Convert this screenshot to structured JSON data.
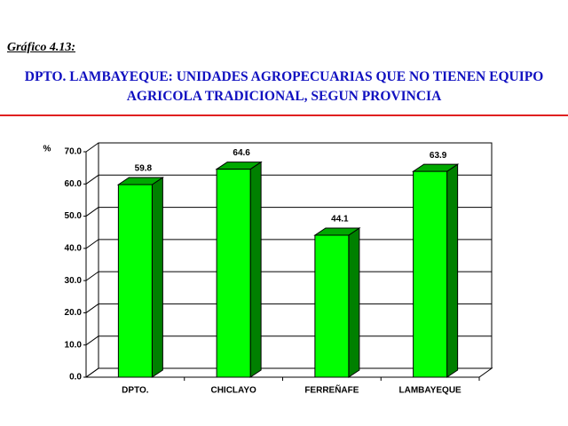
{
  "chart_data": {
    "type": "bar3d",
    "figure_label": "Gráfico  4.13:",
    "title": "DPTO. LAMBAYEQUE: UNIDADES AGROPECUARIAS QUE NO TIENEN EQUIPO AGRICOLA TRADICIONAL, SEGUN PROVINCIA",
    "y_axis_label": "%",
    "categories": [
      "DPTO.",
      "CHICLAYO",
      "FERREÑAFE",
      "LAMBAYEQUE"
    ],
    "values": [
      59.8,
      64.6,
      44.1,
      63.9
    ],
    "color": "#00ff00",
    "ylim": [
      0,
      70
    ],
    "yticks": [
      {
        "value": 0,
        "label": "0.0"
      },
      {
        "value": 10,
        "label": "10.0"
      },
      {
        "value": 20,
        "label": "20.0"
      },
      {
        "value": 30,
        "label": "30.0"
      },
      {
        "value": 40,
        "label": "40.0"
      },
      {
        "value": 50,
        "label": "50.0"
      },
      {
        "value": 60,
        "label": "60.0"
      },
      {
        "value": 70,
        "label": "70.0"
      }
    ],
    "grid": true
  }
}
